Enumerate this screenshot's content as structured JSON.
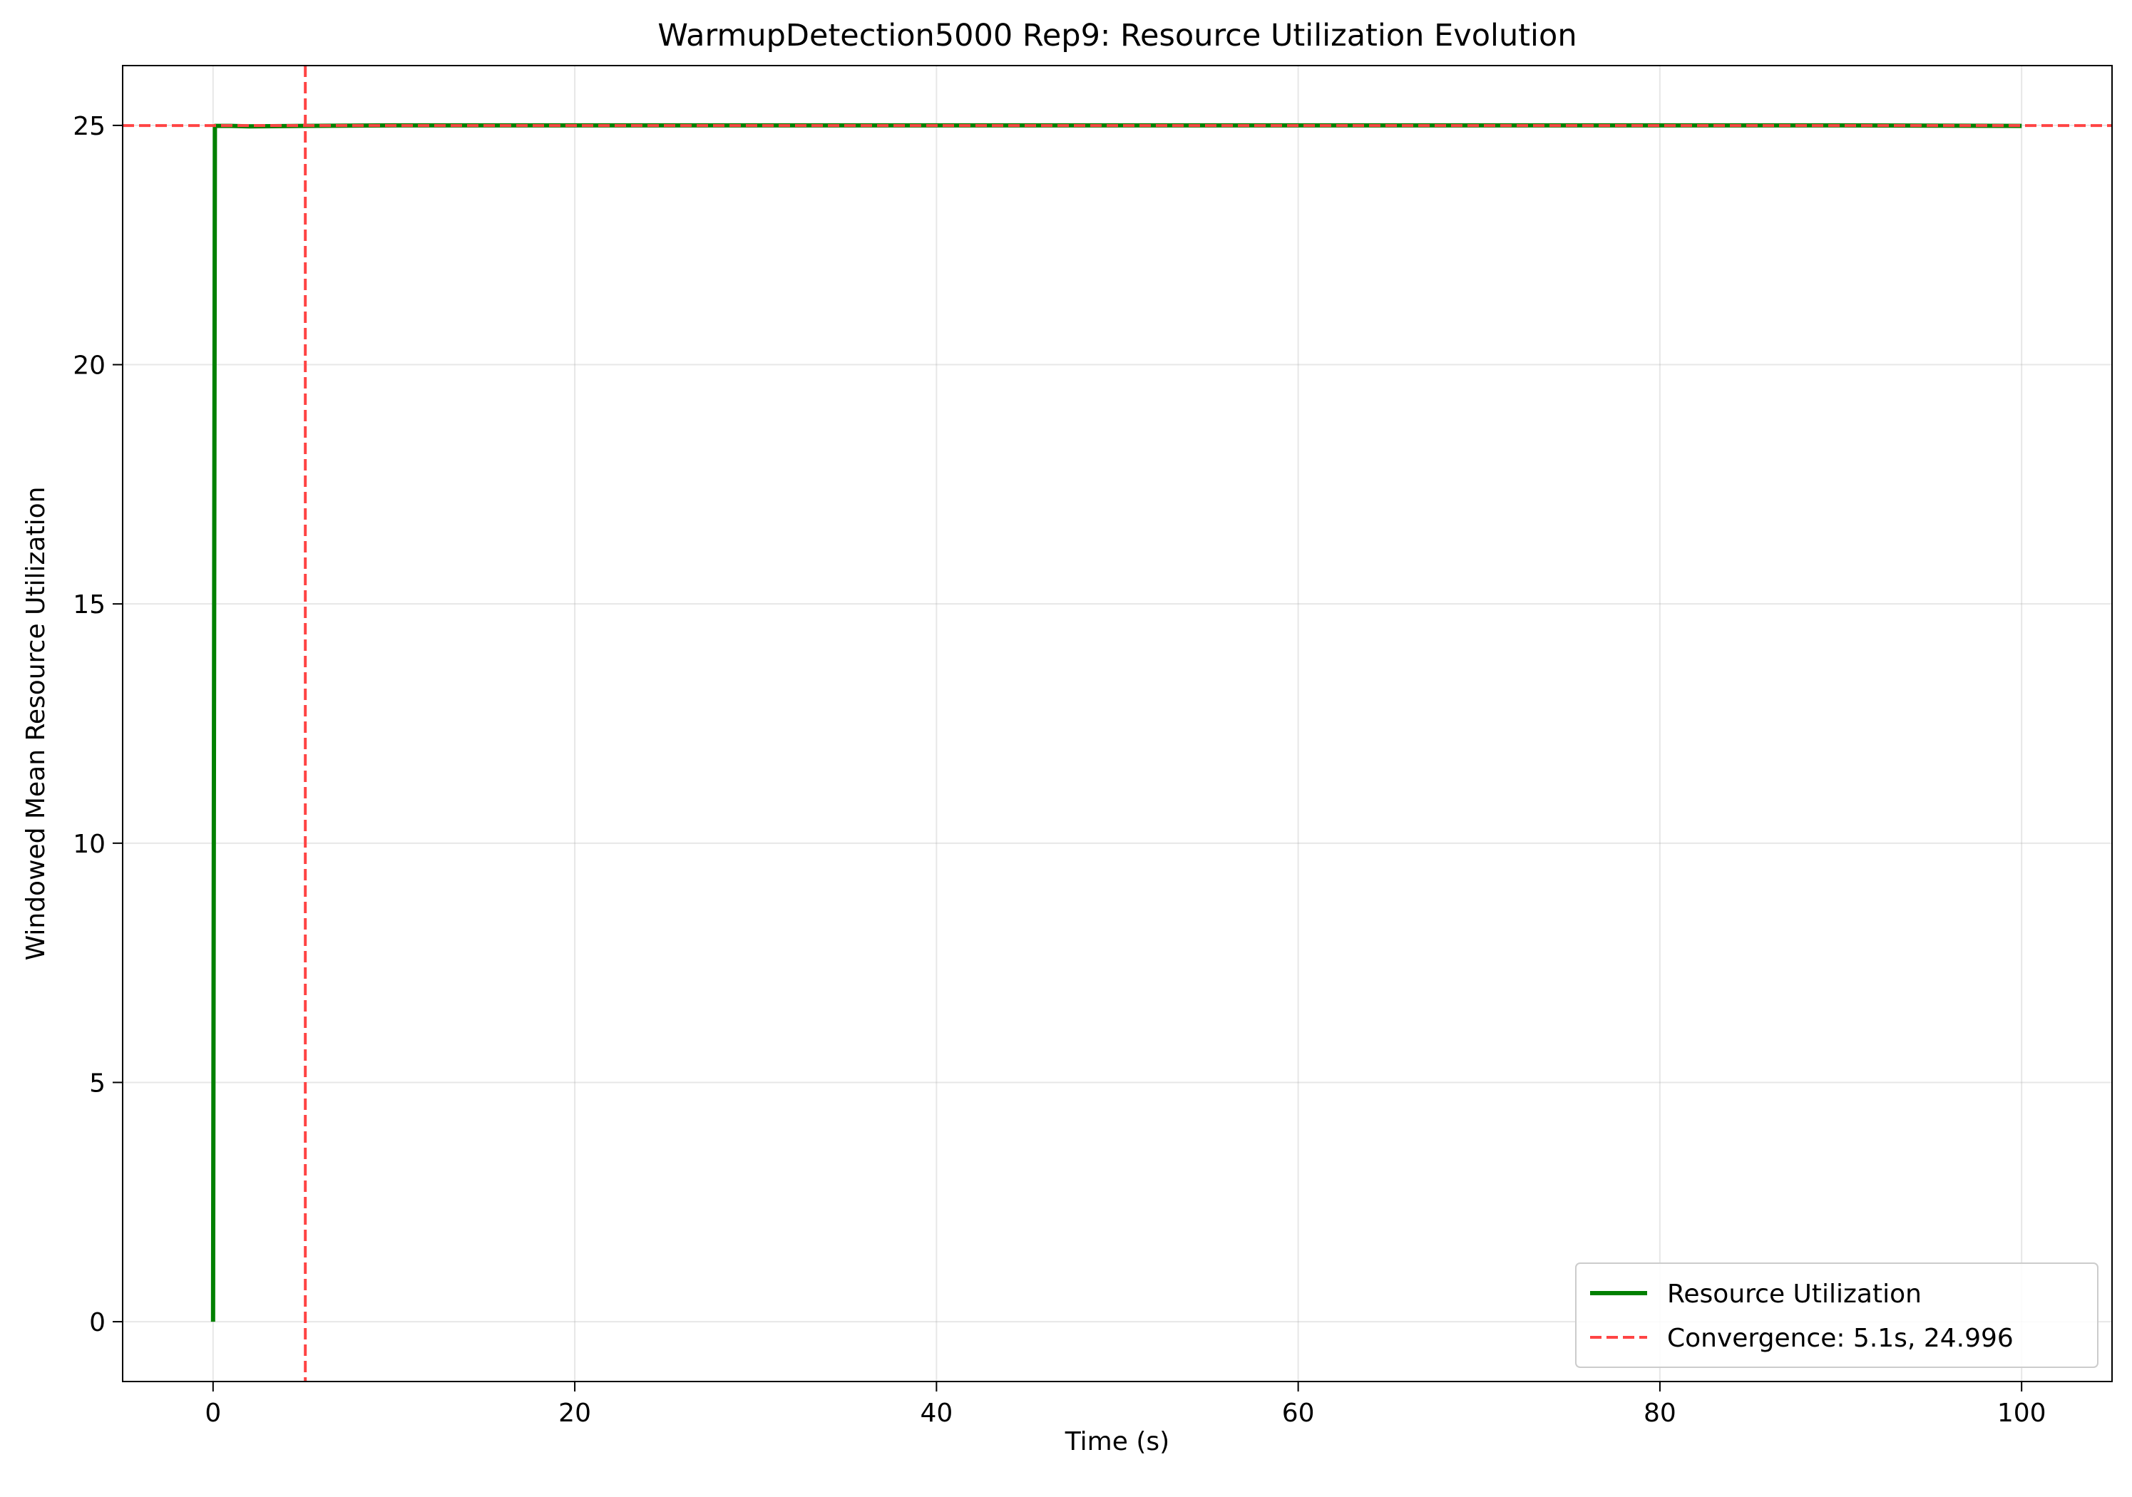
{
  "chart_data": {
    "type": "line",
    "title": "WarmupDetection5000 Rep9: Resource Utilization Evolution",
    "xlabel": "Time (s)",
    "ylabel": "Windowed Mean Resource Utilization",
    "xlim": [
      -5,
      105
    ],
    "ylim": [
      -1.25,
      26.25
    ],
    "xticks": [
      0,
      20,
      40,
      60,
      80,
      100
    ],
    "yticks": [
      0,
      5,
      10,
      15,
      20,
      25
    ],
    "grid": true,
    "legend_position": "lower-right",
    "series": [
      {
        "name": "Resource Utilization",
        "color": "#008000",
        "style": "solid",
        "x": [
          0,
          0.1,
          0.2,
          1,
          2,
          5,
          10,
          20,
          30,
          40,
          50,
          60,
          70,
          80,
          90,
          100
        ],
        "y": [
          0,
          24.99,
          24.99,
          24.99,
          24.98,
          24.99,
          25.0,
          25.0,
          25.0,
          25.0,
          25.0,
          25.0,
          25.0,
          25.0,
          25.0,
          24.99
        ]
      }
    ],
    "reference_lines": [
      {
        "name": "Convergence: 5.1s, 24.996",
        "color": "#ff4444",
        "style": "dashed",
        "x": 5.1,
        "y": 24.996
      }
    ]
  }
}
